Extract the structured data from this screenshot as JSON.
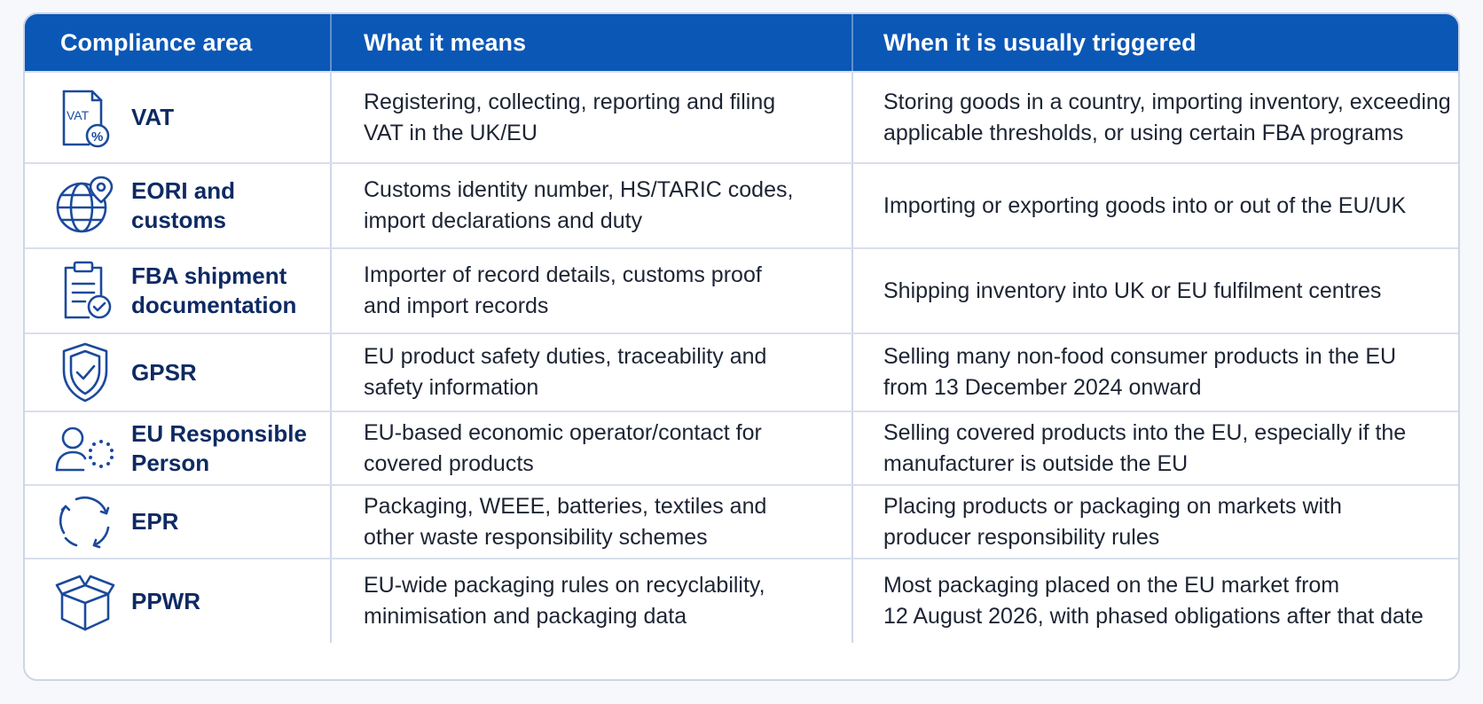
{
  "header": {
    "col1": "Compliance area",
    "col2": "What it means",
    "col3": "When it is usually triggered"
  },
  "rows": [
    {
      "icon": "vat-document-icon",
      "area": "VAT",
      "meaning": "Registering, collecting, reporting and filing\nVAT in the UK/EU",
      "trigger": "Storing goods in a country, importing inventory, exceeding\napplicable thresholds, or using certain FBA programs"
    },
    {
      "icon": "globe-location-icon",
      "area": "EORI and customs",
      "meaning": "Customs identity number, HS/TARIC codes,\nimport declarations and duty",
      "trigger": "Importing or exporting goods into or out of the EU/UK"
    },
    {
      "icon": "clipboard-check-icon",
      "area": "FBA shipment\ndocumentation",
      "meaning": "Importer of record details, customs proof\nand import records",
      "trigger": "Shipping inventory into UK or EU fulfilment centres"
    },
    {
      "icon": "shield-check-icon",
      "area": "GPSR",
      "meaning": "EU product safety duties, traceability and\nsafety information",
      "trigger": "Selling many non-food consumer products in the EU\nfrom 13 December 2024 onward"
    },
    {
      "icon": "person-eu-stars-icon",
      "area": "EU Responsible\nPerson",
      "meaning": "EU-based economic operator/contact for\ncovered products",
      "trigger": "Selling covered products into the EU, especially if the\nmanufacturer is outside the EU"
    },
    {
      "icon": "recycle-arrows-icon",
      "area": "EPR",
      "meaning": "Packaging, WEEE, batteries, textiles and\nother waste responsibility schemes",
      "trigger": "Placing products or packaging on markets with\nproducer responsibility rules"
    },
    {
      "icon": "open-box-icon",
      "area": "PPWR",
      "meaning": "EU-wide packaging rules on recyclability,\nminimisation and packaging data",
      "trigger": "Most packaging placed on the EU market from\n12 August 2026, with phased obligations after that date"
    }
  ],
  "colors": {
    "header_bg": "#0b57b6",
    "icon_stroke": "#1b4a9c",
    "area_text": "#0e2a63"
  },
  "vat_icon_text": "VAT",
  "vat_icon_symbol": "%"
}
